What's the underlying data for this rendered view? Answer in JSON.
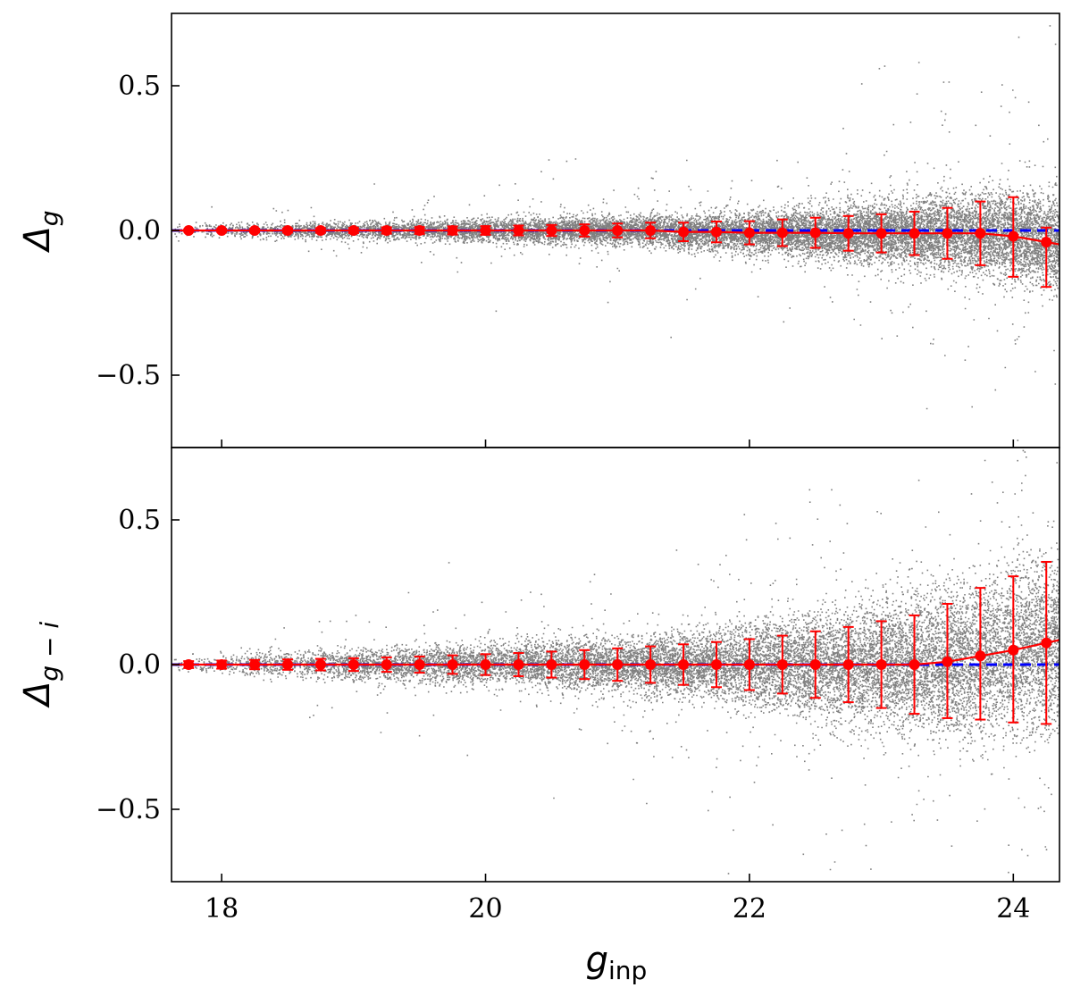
{
  "chart_data": {
    "type": "scatter",
    "x_label": "g",
    "x_label_subscript": "inp",
    "xlim": [
      17.62,
      24.35
    ],
    "x_ticks": [
      18,
      20,
      22,
      24
    ],
    "x_tick_labels": [
      "18",
      "20",
      "22",
      "24"
    ],
    "bins_x": [
      17.75,
      18.0,
      18.25,
      18.5,
      18.75,
      19.0,
      19.25,
      19.5,
      19.75,
      20.0,
      20.25,
      20.5,
      20.75,
      21.0,
      21.25,
      21.5,
      21.75,
      22.0,
      22.25,
      22.5,
      22.75,
      23.0,
      23.25,
      23.5,
      23.75,
      24.0,
      24.25
    ],
    "colors": {
      "scatter": "#808080",
      "median": "#ff0000",
      "reference": "#0000ff"
    },
    "grid": false,
    "legend": "none",
    "panels": [
      {
        "name": "top",
        "y_label": "Δ",
        "y_label_subscript": "g",
        "ylim": [
          -0.75,
          0.75
        ],
        "y_ticks": [
          0.5,
          0.0,
          -0.5
        ],
        "y_tick_labels": [
          "0.5",
          "0.0",
          "−0.5"
        ],
        "reference_y": 0.0,
        "median": [
          0.0,
          0.0,
          0.0,
          0.0,
          0.0,
          0.0,
          0.0,
          0.0,
          0.0,
          0.0,
          0.0,
          0.0,
          0.0,
          0.0,
          0.0,
          -0.005,
          -0.005,
          -0.008,
          -0.008,
          -0.008,
          -0.01,
          -0.01,
          -0.01,
          -0.01,
          -0.01,
          -0.02,
          -0.04
        ],
        "scatter_width": [
          0.01,
          0.011,
          0.012,
          0.013,
          0.014,
          0.015,
          0.016,
          0.017,
          0.018,
          0.019,
          0.02,
          0.021,
          0.022,
          0.023,
          0.025,
          0.028,
          0.031,
          0.034,
          0.038,
          0.042,
          0.047,
          0.052,
          0.058,
          0.064,
          0.07,
          0.075,
          0.078
        ],
        "error_low": [
          0.004,
          0.005,
          0.006,
          0.007,
          0.008,
          0.009,
          0.011,
          0.012,
          0.014,
          0.015,
          0.017,
          0.019,
          0.021,
          0.024,
          0.027,
          0.032,
          0.036,
          0.04,
          0.046,
          0.052,
          0.06,
          0.066,
          0.075,
          0.088,
          0.11,
          0.14,
          0.155
        ],
        "error_high": [
          0.004,
          0.005,
          0.006,
          0.007,
          0.008,
          0.009,
          0.011,
          0.012,
          0.014,
          0.015,
          0.017,
          0.019,
          0.021,
          0.024,
          0.027,
          0.032,
          0.036,
          0.04,
          0.046,
          0.052,
          0.06,
          0.066,
          0.075,
          0.088,
          0.11,
          0.135,
          0.05
        ]
      },
      {
        "name": "bottom",
        "y_label": "Δ",
        "y_label_subscript": "g − i",
        "ylim": [
          -0.75,
          0.75
        ],
        "y_ticks": [
          0.5,
          0.0,
          -0.5
        ],
        "y_tick_labels": [
          "0.5",
          "0.0",
          "−0.5"
        ],
        "reference_y": 0.0,
        "median": [
          0.0,
          0.0,
          0.0,
          0.0,
          0.0,
          0.0,
          0.0,
          0.0,
          0.0,
          0.0,
          0.0,
          0.0,
          0.0,
          0.0,
          0.0,
          0.0,
          0.0,
          0.0,
          0.0,
          0.0,
          0.0,
          0.0,
          0.0,
          0.01,
          0.03,
          0.05,
          0.075
        ],
        "scatter_width": [
          0.016,
          0.018,
          0.02,
          0.022,
          0.024,
          0.026,
          0.028,
          0.03,
          0.032,
          0.034,
          0.036,
          0.039,
          0.042,
          0.045,
          0.05,
          0.055,
          0.062,
          0.07,
          0.078,
          0.088,
          0.098,
          0.108,
          0.118,
          0.128,
          0.138,
          0.145,
          0.15
        ],
        "error_low": [
          0.012,
          0.014,
          0.016,
          0.018,
          0.02,
          0.022,
          0.025,
          0.028,
          0.032,
          0.036,
          0.04,
          0.045,
          0.05,
          0.056,
          0.063,
          0.07,
          0.078,
          0.088,
          0.1,
          0.115,
          0.13,
          0.15,
          0.17,
          0.195,
          0.22,
          0.25,
          0.28
        ],
        "error_high": [
          0.012,
          0.014,
          0.016,
          0.018,
          0.02,
          0.022,
          0.025,
          0.028,
          0.032,
          0.036,
          0.04,
          0.045,
          0.05,
          0.056,
          0.063,
          0.07,
          0.078,
          0.088,
          0.1,
          0.115,
          0.13,
          0.15,
          0.17,
          0.2,
          0.235,
          0.255,
          0.28
        ]
      }
    ]
  }
}
